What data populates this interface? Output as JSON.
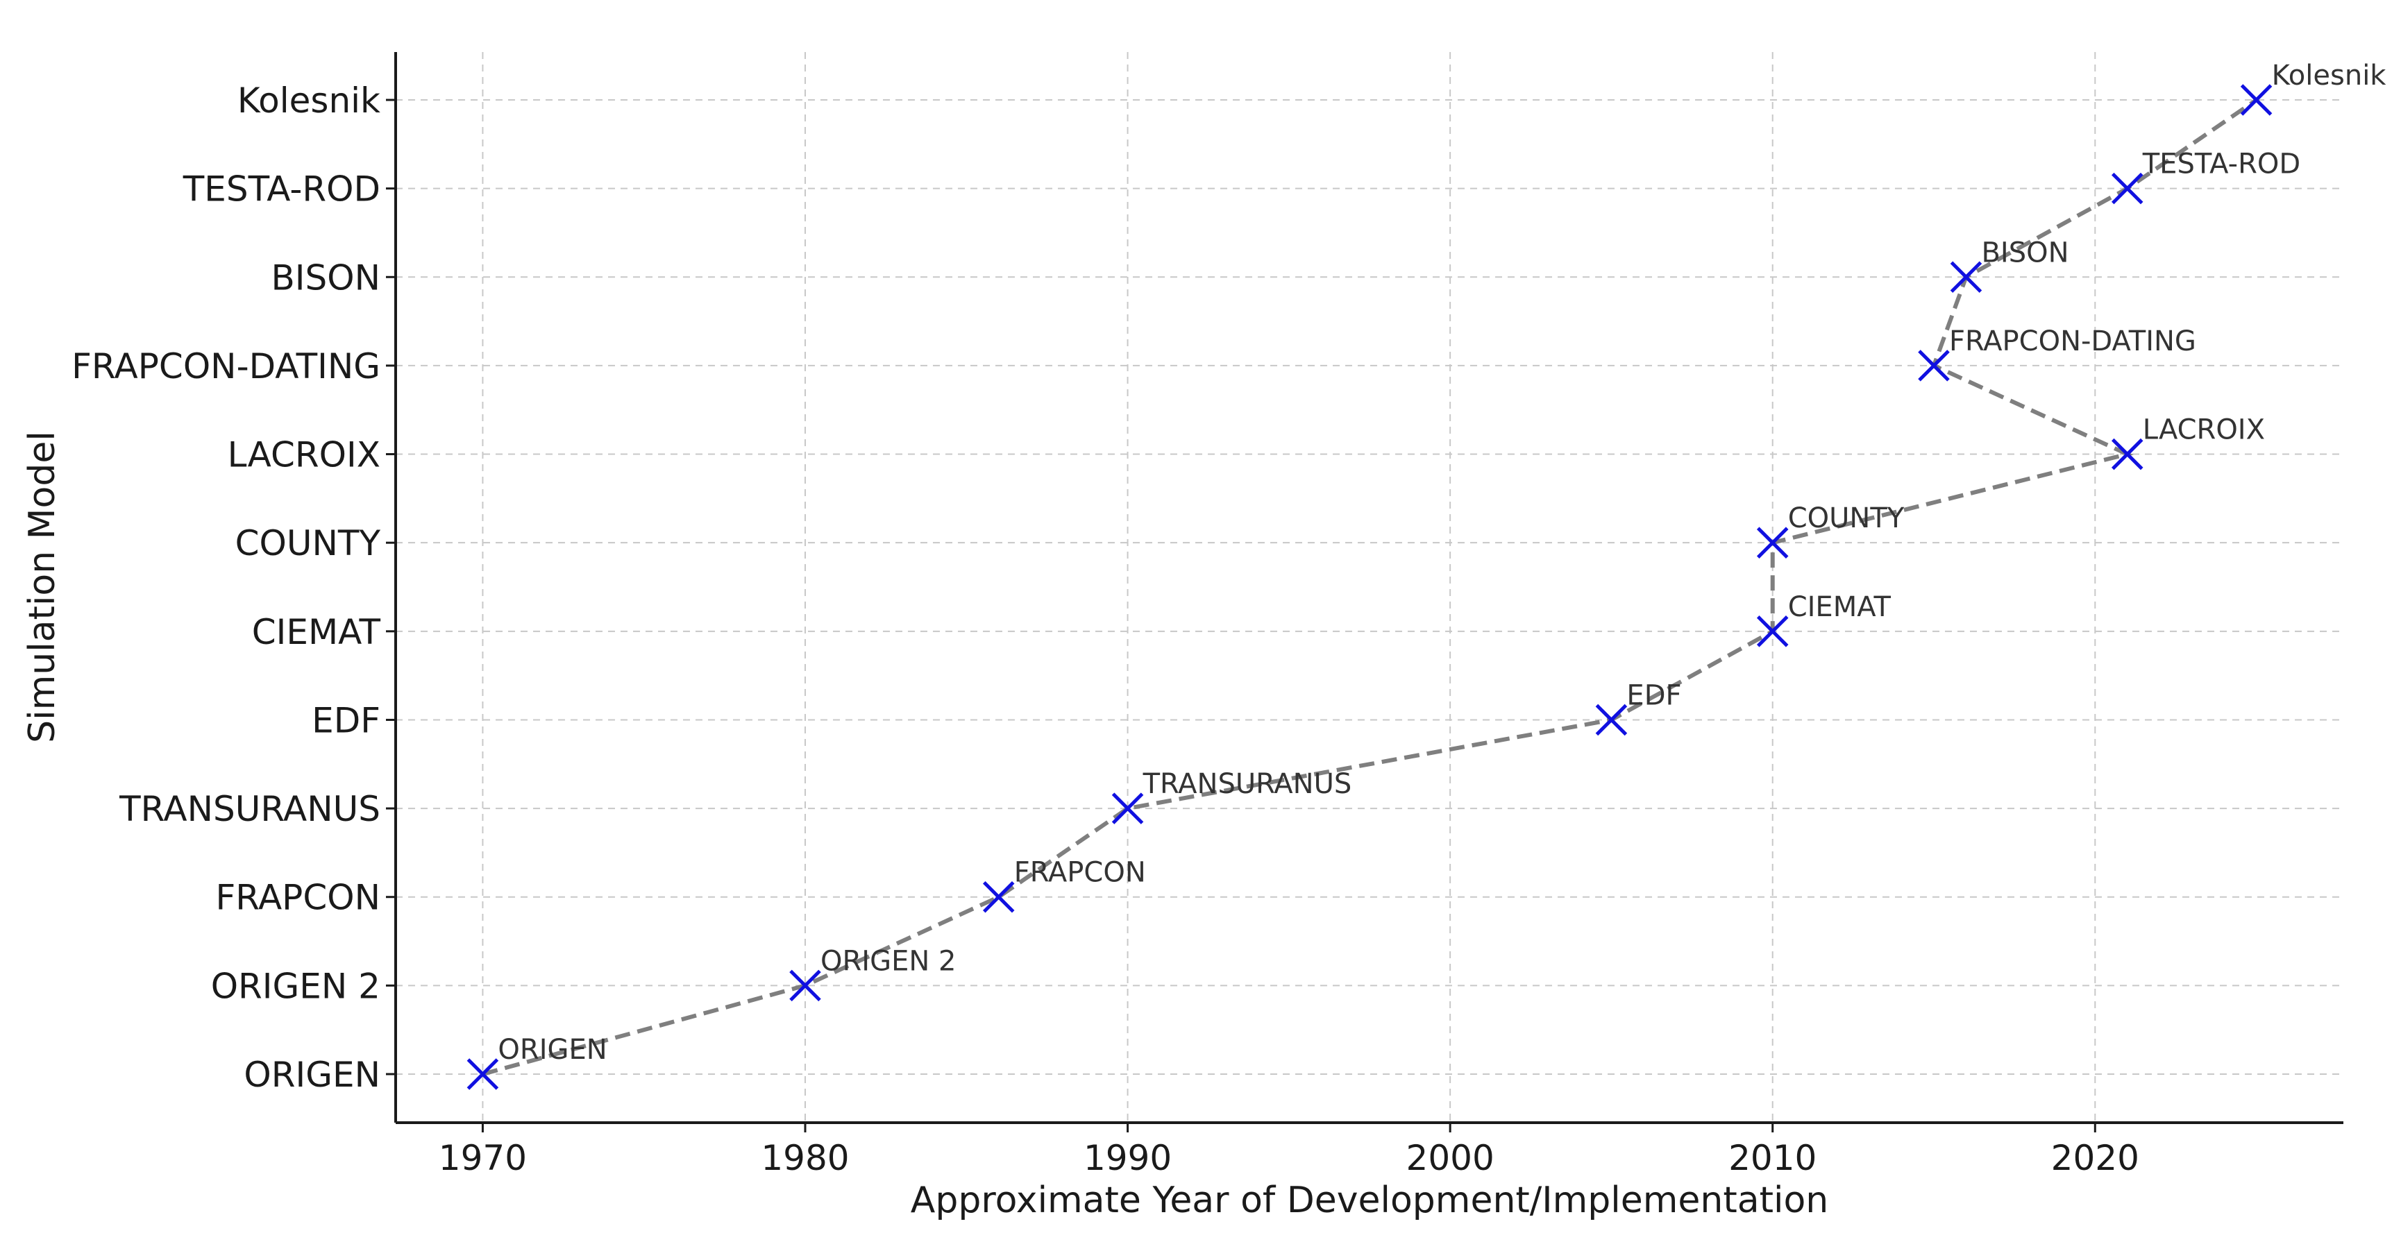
{
  "chart_data": {
    "type": "line",
    "title": "",
    "xlabel": "Approximate Year of Development/Implementation",
    "ylabel": "Simulation Model",
    "xlim": [
      1967.3,
      2027.7
    ],
    "x_ticks": [
      1970,
      1980,
      1990,
      2000,
      2010,
      2020
    ],
    "x_tick_labels": [
      "1970",
      "1980",
      "1990",
      "2000",
      "2010",
      "2020"
    ],
    "categories": [
      "ORIGEN",
      "ORIGEN 2",
      "FRAPCON",
      "TRANSURANUS",
      "EDF",
      "CIEMAT",
      "COUNTY",
      "LACROIX",
      "FRAPCON-DATING",
      "BISON",
      "TESTA-ROD",
      "Kolesnik"
    ],
    "grid": true,
    "line_style": "dashed",
    "line_color": "#7f7f7f",
    "marker": "x",
    "marker_color": "#1010e0",
    "series": [
      {
        "points": [
          {
            "label": "ORIGEN",
            "x": 1970,
            "y": "ORIGEN"
          },
          {
            "label": "ORIGEN 2",
            "x": 1980,
            "y": "ORIGEN 2"
          },
          {
            "label": "FRAPCON",
            "x": 1986,
            "y": "FRAPCON"
          },
          {
            "label": "TRANSURANUS",
            "x": 1990,
            "y": "TRANSURANUS"
          },
          {
            "label": "EDF",
            "x": 2005,
            "y": "EDF"
          },
          {
            "label": "CIEMAT",
            "x": 2010,
            "y": "CIEMAT"
          },
          {
            "label": "COUNTY",
            "x": 2010,
            "y": "COUNTY"
          },
          {
            "label": "LACROIX",
            "x": 2021,
            "y": "LACROIX"
          },
          {
            "label": "FRAPCON-DATING",
            "x": 2015,
            "y": "FRAPCON-DATING"
          },
          {
            "label": "BISON",
            "x": 2016,
            "y": "BISON"
          },
          {
            "label": "TESTA-ROD",
            "x": 2021,
            "y": "TESTA-ROD"
          },
          {
            "label": "Kolesnik",
            "x": 2025,
            "y": "Kolesnik"
          }
        ]
      }
    ]
  }
}
